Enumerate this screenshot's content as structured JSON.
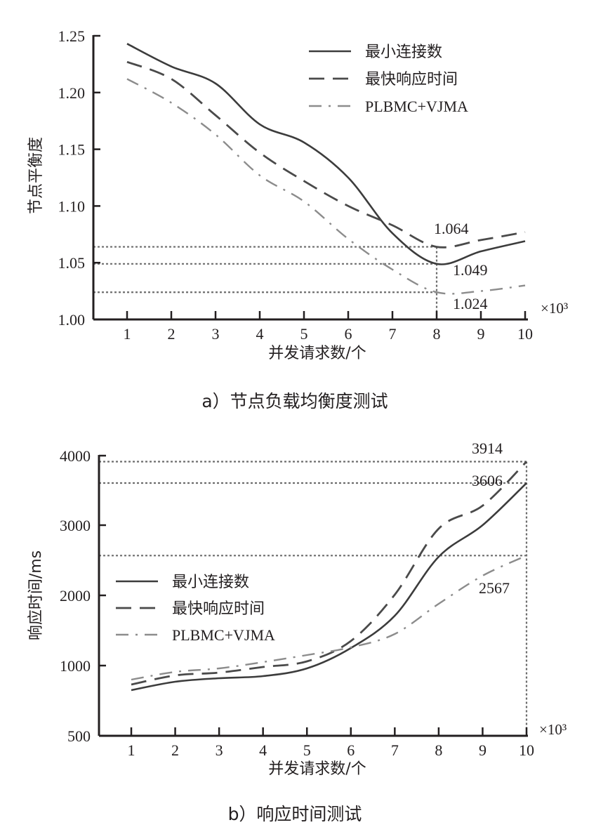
{
  "chart_data": [
    {
      "type": "line",
      "title": "a）节点负载均衡度测试",
      "xlabel": "并发请求数/个",
      "ylabel": "节点平衡度",
      "x_multiplier": "×10³",
      "x": [
        1,
        2,
        3,
        4,
        5,
        6,
        7,
        8,
        9,
        10
      ],
      "x_ticks": [
        "1",
        "2",
        "3",
        "4",
        "5",
        "6",
        "7",
        "8",
        "9",
        "10"
      ],
      "y_ticks": [
        "1.00",
        "1.05",
        "1.10",
        "1.15",
        "1.20",
        "1.25"
      ],
      "ylim": [
        1.0,
        1.25
      ],
      "legend_position": "top-right",
      "series": [
        {
          "name": "最小连接数",
          "style": "solid",
          "color": "#3c3c3c",
          "values": [
            1.243,
            1.223,
            1.208,
            1.172,
            1.156,
            1.125,
            1.076,
            1.049,
            1.06,
            1.069
          ]
        },
        {
          "name": "最快响应时间",
          "style": "dashed",
          "color": "#4a4a4a",
          "values": [
            1.227,
            1.212,
            1.18,
            1.147,
            1.122,
            1.1,
            1.083,
            1.064,
            1.07,
            1.077
          ]
        },
        {
          "name": "PLBMC+VJMA",
          "style": "dashdot",
          "color": "#8c8c8c",
          "values": [
            1.212,
            1.191,
            1.163,
            1.127,
            1.104,
            1.071,
            1.044,
            1.024,
            1.025,
            1.03
          ]
        }
      ],
      "annotations": [
        {
          "text": "1.064",
          "x": 8,
          "y": 1.064
        },
        {
          "text": "1.049",
          "x": 8,
          "y": 1.049
        },
        {
          "text": "1.024",
          "x": 8,
          "y": 1.024
        }
      ]
    },
    {
      "type": "line",
      "title": "b）响应时间测试",
      "xlabel": "并发请求数/个",
      "ylabel": "响应时间/ms",
      "x_multiplier": "×10³",
      "x": [
        1,
        2,
        3,
        4,
        5,
        6,
        7,
        8,
        9,
        10
      ],
      "x_ticks": [
        "1",
        "2",
        "3",
        "4",
        "5",
        "6",
        "7",
        "8",
        "9",
        "10"
      ],
      "y_ticks": [
        "500",
        "1000",
        "2000",
        "3000",
        "4000"
      ],
      "y_tick_values": [
        500,
        1000,
        2000,
        3000,
        4000
      ],
      "ylim": [
        500,
        4000
      ],
      "legend_position": "middle-left",
      "series": [
        {
          "name": "最小连接数",
          "style": "solid",
          "color": "#3c3c3c",
          "values": [
            825,
            885,
            910,
            925,
            980,
            1250,
            1710,
            2550,
            3000,
            3606
          ]
        },
        {
          "name": "最快响应时间",
          "style": "dashed",
          "color": "#4a4a4a",
          "values": [
            865,
            930,
            950,
            990,
            1060,
            1350,
            2010,
            2950,
            3280,
            3914
          ]
        },
        {
          "name": "PLBMC+VJMA",
          "style": "dashdot",
          "color": "#8c8c8c",
          "values": [
            900,
            955,
            980,
            1050,
            1150,
            1260,
            1450,
            1880,
            2280,
            2567
          ]
        }
      ],
      "annotations": [
        {
          "text": "3914",
          "x": 10,
          "y": 3914
        },
        {
          "text": "3606",
          "x": 10,
          "y": 3606
        },
        {
          "text": "2567",
          "x": 10,
          "y": 2567
        }
      ]
    }
  ]
}
